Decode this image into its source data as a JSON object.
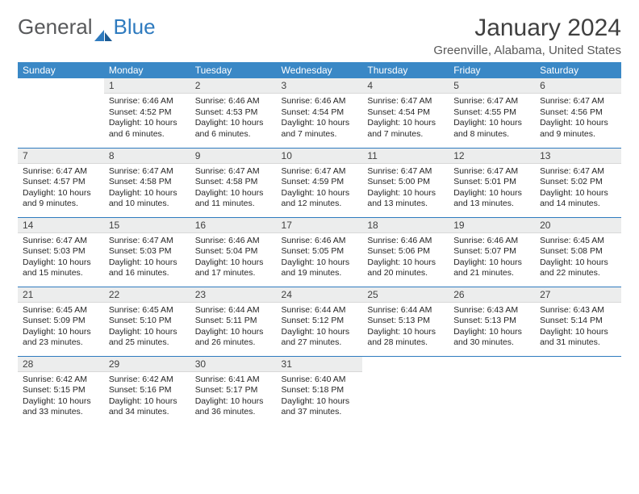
{
  "brand": {
    "general": "General",
    "blue": "Blue"
  },
  "title": "January 2024",
  "location": "Greenville, Alabama, United States",
  "colors": {
    "header_bg": "#3a88c6",
    "header_text": "#ffffff",
    "daynum_bg": "#eceded",
    "sep": "#2f7bbf",
    "text": "#262626",
    "title_color": "#404040",
    "location_color": "#595959"
  },
  "weekdays": [
    "Sunday",
    "Monday",
    "Tuesday",
    "Wednesday",
    "Thursday",
    "Friday",
    "Saturday"
  ],
  "weeks": [
    [
      null,
      {
        "n": "1",
        "sr": "6:46 AM",
        "ss": "4:52 PM",
        "dl": "10 hours and 6 minutes."
      },
      {
        "n": "2",
        "sr": "6:46 AM",
        "ss": "4:53 PM",
        "dl": "10 hours and 6 minutes."
      },
      {
        "n": "3",
        "sr": "6:46 AM",
        "ss": "4:54 PM",
        "dl": "10 hours and 7 minutes."
      },
      {
        "n": "4",
        "sr": "6:47 AM",
        "ss": "4:54 PM",
        "dl": "10 hours and 7 minutes."
      },
      {
        "n": "5",
        "sr": "6:47 AM",
        "ss": "4:55 PM",
        "dl": "10 hours and 8 minutes."
      },
      {
        "n": "6",
        "sr": "6:47 AM",
        "ss": "4:56 PM",
        "dl": "10 hours and 9 minutes."
      }
    ],
    [
      {
        "n": "7",
        "sr": "6:47 AM",
        "ss": "4:57 PM",
        "dl": "10 hours and 9 minutes."
      },
      {
        "n": "8",
        "sr": "6:47 AM",
        "ss": "4:58 PM",
        "dl": "10 hours and 10 minutes."
      },
      {
        "n": "9",
        "sr": "6:47 AM",
        "ss": "4:58 PM",
        "dl": "10 hours and 11 minutes."
      },
      {
        "n": "10",
        "sr": "6:47 AM",
        "ss": "4:59 PM",
        "dl": "10 hours and 12 minutes."
      },
      {
        "n": "11",
        "sr": "6:47 AM",
        "ss": "5:00 PM",
        "dl": "10 hours and 13 minutes."
      },
      {
        "n": "12",
        "sr": "6:47 AM",
        "ss": "5:01 PM",
        "dl": "10 hours and 13 minutes."
      },
      {
        "n": "13",
        "sr": "6:47 AM",
        "ss": "5:02 PM",
        "dl": "10 hours and 14 minutes."
      }
    ],
    [
      {
        "n": "14",
        "sr": "6:47 AM",
        "ss": "5:03 PM",
        "dl": "10 hours and 15 minutes."
      },
      {
        "n": "15",
        "sr": "6:47 AM",
        "ss": "5:03 PM",
        "dl": "10 hours and 16 minutes."
      },
      {
        "n": "16",
        "sr": "6:46 AM",
        "ss": "5:04 PM",
        "dl": "10 hours and 17 minutes."
      },
      {
        "n": "17",
        "sr": "6:46 AM",
        "ss": "5:05 PM",
        "dl": "10 hours and 19 minutes."
      },
      {
        "n": "18",
        "sr": "6:46 AM",
        "ss": "5:06 PM",
        "dl": "10 hours and 20 minutes."
      },
      {
        "n": "19",
        "sr": "6:46 AM",
        "ss": "5:07 PM",
        "dl": "10 hours and 21 minutes."
      },
      {
        "n": "20",
        "sr": "6:45 AM",
        "ss": "5:08 PM",
        "dl": "10 hours and 22 minutes."
      }
    ],
    [
      {
        "n": "21",
        "sr": "6:45 AM",
        "ss": "5:09 PM",
        "dl": "10 hours and 23 minutes."
      },
      {
        "n": "22",
        "sr": "6:45 AM",
        "ss": "5:10 PM",
        "dl": "10 hours and 25 minutes."
      },
      {
        "n": "23",
        "sr": "6:44 AM",
        "ss": "5:11 PM",
        "dl": "10 hours and 26 minutes."
      },
      {
        "n": "24",
        "sr": "6:44 AM",
        "ss": "5:12 PM",
        "dl": "10 hours and 27 minutes."
      },
      {
        "n": "25",
        "sr": "6:44 AM",
        "ss": "5:13 PM",
        "dl": "10 hours and 28 minutes."
      },
      {
        "n": "26",
        "sr": "6:43 AM",
        "ss": "5:13 PM",
        "dl": "10 hours and 30 minutes."
      },
      {
        "n": "27",
        "sr": "6:43 AM",
        "ss": "5:14 PM",
        "dl": "10 hours and 31 minutes."
      }
    ],
    [
      {
        "n": "28",
        "sr": "6:42 AM",
        "ss": "5:15 PM",
        "dl": "10 hours and 33 minutes."
      },
      {
        "n": "29",
        "sr": "6:42 AM",
        "ss": "5:16 PM",
        "dl": "10 hours and 34 minutes."
      },
      {
        "n": "30",
        "sr": "6:41 AM",
        "ss": "5:17 PM",
        "dl": "10 hours and 36 minutes."
      },
      {
        "n": "31",
        "sr": "6:40 AM",
        "ss": "5:18 PM",
        "dl": "10 hours and 37 minutes."
      },
      null,
      null,
      null
    ]
  ],
  "labels": {
    "sunrise": "Sunrise:",
    "sunset": "Sunset:",
    "daylight": "Daylight:"
  }
}
